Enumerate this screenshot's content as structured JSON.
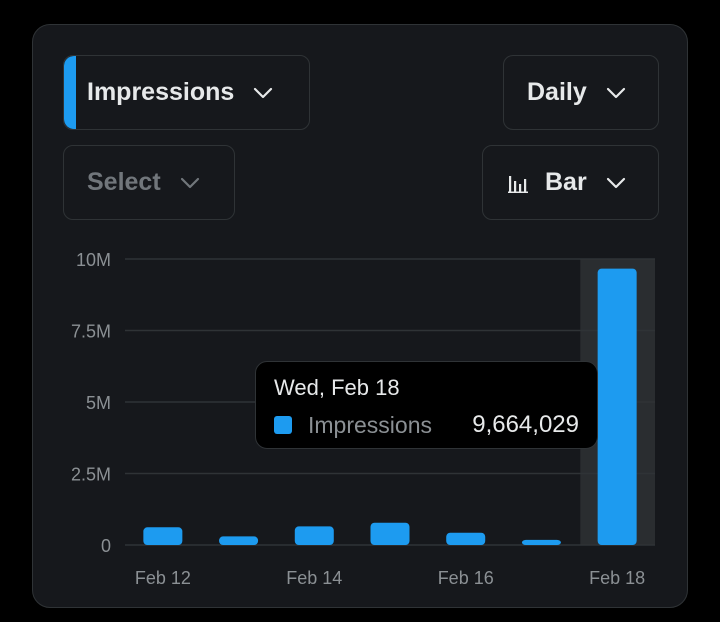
{
  "controls": {
    "metric": {
      "label": "Impressions",
      "icon": "chevron-down-icon"
    },
    "interval": {
      "label": "Daily",
      "icon": "chevron-down-icon"
    },
    "compare": {
      "label": "Select",
      "icon": "chevron-down-icon"
    },
    "chart_type": {
      "label": "Bar",
      "icon": "bar-chart-icon"
    }
  },
  "colors": {
    "accent": "#1d9bf0",
    "card": "#16181c",
    "border": "#2f3336",
    "highlight": "#2a2d30"
  },
  "tooltip": {
    "date": "Wed, Feb 18",
    "series": "Impressions",
    "value": "9,664,029"
  },
  "chart_data": {
    "type": "bar",
    "x": [
      "Feb 12",
      "Feb 13",
      "Feb 14",
      "Feb 15",
      "Feb 16",
      "Feb 17",
      "Feb 18"
    ],
    "x_tick_labels": [
      "Feb 12",
      "Feb 14",
      "Feb 16",
      "Feb 18"
    ],
    "series": [
      {
        "name": "Impressions",
        "values": [
          620000,
          300000,
          650000,
          780000,
          430000,
          180000,
          9664029
        ]
      }
    ],
    "y_ticks": [
      0,
      2500000,
      5000000,
      7500000,
      10000000
    ],
    "y_tick_labels": [
      "0",
      "2.5M",
      "5M",
      "7.5M",
      "10M"
    ],
    "ylim": [
      0,
      10000000
    ],
    "highlighted": "Feb 18",
    "grid": true,
    "legend": "none"
  }
}
